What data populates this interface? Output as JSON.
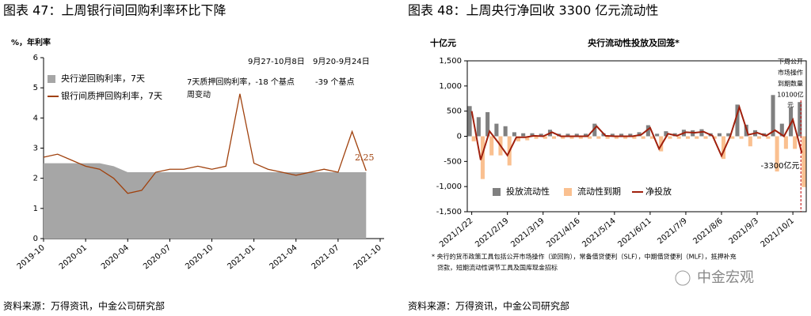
{
  "chart_data": [
    {
      "type": "line",
      "title": "图表 47：上周银行间回购利率环比下降",
      "y_label": "%，年利率",
      "source": "资料来源：万得资讯，中金公司研究部",
      "categories": [
        "2019-10",
        null,
        null,
        "2020-01",
        null,
        null,
        "2020-04",
        null,
        null,
        "2020-07",
        null,
        null,
        "2020-10",
        null,
        null,
        "2021-01",
        null,
        null,
        "2021-04",
        null,
        null,
        "2021-07",
        null,
        null,
        "2021-10"
      ],
      "series": [
        {
          "name": "央行逆回购利率，7天",
          "color": "#a6a6a6",
          "kind": "area",
          "values": [
            2.5,
            2.5,
            2.5,
            2.5,
            2.5,
            2.4,
            2.2,
            2.2,
            2.2,
            2.2,
            2.2,
            2.2,
            2.2,
            2.2,
            2.2,
            2.2,
            2.2,
            2.2,
            2.2,
            2.2,
            2.2,
            2.2,
            2.2,
            2.2,
            null
          ]
        },
        {
          "name": "银行间质押回购利率，7天",
          "color": "#a0410d",
          "kind": "line",
          "values": [
            2.7,
            2.8,
            2.6,
            2.4,
            2.3,
            2.0,
            1.5,
            1.6,
            2.2,
            2.3,
            2.3,
            2.4,
            2.3,
            2.4,
            4.8,
            2.5,
            2.3,
            2.2,
            2.1,
            2.2,
            2.3,
            2.2,
            3.55,
            2.25,
            null
          ]
        }
      ],
      "ylim": [
        0,
        6
      ],
      "yticks": [
        0,
        1,
        2,
        3,
        4,
        5,
        6
      ],
      "annotations": [
        "9月27-10月8日",
        "9月20-9月24日",
        "7天质押回购利率，-18 个基点",
        "-39 个基点",
        "周变动"
      ]
    },
    {
      "type": "bar",
      "title": "图表 48：上周央行净回收 3300 亿元流动性",
      "subtitle": "央行流动性投放及回笼*",
      "y_label": "十亿元",
      "source": "资料来源：万得资讯，中金公司研究部",
      "footnote": [
        "* 央行的货币政策工具包括公开市场操作（逆回购），常备借贷便利（SLF），中期借贷便利（MLF），抵押补充",
        "贷款，短期流动性调节工具及国库现金招标"
      ],
      "categories": [
        "2021/1/22",
        null,
        null,
        null,
        "2021/2/19",
        null,
        null,
        null,
        "2021/3/19",
        null,
        null,
        null,
        "2021/4/16",
        null,
        null,
        null,
        "2021/5/14",
        null,
        null,
        null,
        "2021/6/11",
        null,
        null,
        null,
        "2021/7/9",
        null,
        null,
        null,
        "2021/8/6",
        null,
        null,
        null,
        "2021/9/3",
        null,
        null,
        null,
        "2021/10/1",
        null
      ],
      "series": [
        {
          "name": "投放流动性",
          "color": "#808080",
          "kind": "bar",
          "values": [
            600,
            380,
            480,
            250,
            200,
            80,
            60,
            60,
            50,
            130,
            50,
            50,
            50,
            50,
            250,
            60,
            50,
            50,
            50,
            80,
            220,
            50,
            100,
            60,
            130,
            120,
            140,
            60,
            60,
            60,
            630,
            230,
            120,
            60,
            820,
            250,
            580,
            680
          ]
        },
        {
          "name": "流动性到期",
          "color": "#fac090",
          "kind": "bar",
          "values": [
            -100,
            -850,
            -380,
            -380,
            -580,
            -100,
            -80,
            -50,
            -50,
            -50,
            -50,
            -50,
            -50,
            -50,
            -50,
            -50,
            -50,
            -50,
            -50,
            -50,
            -50,
            -300,
            -50,
            -50,
            -50,
            -50,
            -50,
            -50,
            -450,
            -50,
            -50,
            -200,
            -50,
            -50,
            -700,
            -250,
            -250,
            -1010
          ]
        },
        {
          "name": "净投放",
          "color": "#a0200d",
          "kind": "line",
          "values": [
            500,
            -470,
            100,
            -130,
            -380,
            -20,
            -20,
            10,
            0,
            80,
            0,
            0,
            0,
            0,
            200,
            10,
            0,
            0,
            0,
            30,
            170,
            -250,
            50,
            10,
            80,
            70,
            90,
            10,
            -390,
            10,
            580,
            30,
            70,
            10,
            120,
            0,
            330,
            -330
          ]
        }
      ],
      "ylim": [
        -1500,
        1500
      ],
      "yticks": [
        {
          "value": -1500,
          "label": "-1,500"
        },
        {
          "value": -1000,
          "label": "-1,000"
        },
        -500,
        0,
        500,
        {
          "value": 1000,
          "label": "1,000"
        },
        {
          "value": 1500,
          "label": "1,500"
        }
      ],
      "annotations": [
        "下周公开",
        "市场操作",
        "到期数量",
        "10100亿",
        "元",
        "-3300亿元"
      ]
    }
  ],
  "watermark": "中金宏观"
}
